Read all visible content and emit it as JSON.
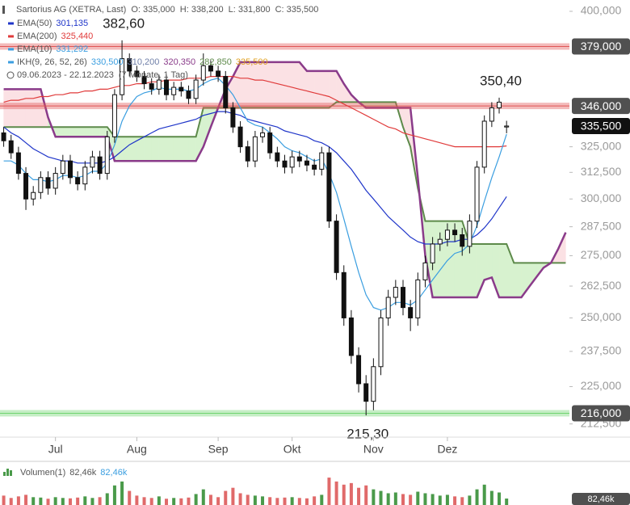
{
  "chart_data": {
    "type": "candlestick",
    "title": "Sartorius AG (XETRA, Last)",
    "ohlc_text": [
      "O: 335,000",
      "H: 338,200",
      "L: 331,800",
      "C: 335,500"
    ],
    "range_text": "09.06.2023 - 22.12.2023",
    "range_note": "(7 Monate, 1 Tag)",
    "log_scale": true,
    "ylim": [
      208.5,
      407
    ],
    "yticks": [
      {
        "value": 400,
        "label": "400,000"
      },
      {
        "value": 325,
        "label": "325,000"
      },
      {
        "value": 312.5,
        "label": "312,500"
      },
      {
        "value": 300,
        "label": "300,000"
      },
      {
        "value": 287.5,
        "label": "287,500"
      },
      {
        "value": 275,
        "label": "275,000"
      },
      {
        "value": 262.5,
        "label": "262,500"
      },
      {
        "value": 250,
        "label": "250,000"
      },
      {
        "value": 237.5,
        "label": "237,500"
      },
      {
        "value": 225,
        "label": "225,000"
      },
      {
        "value": 212.5,
        "label": "212,500"
      }
    ],
    "categories": [
      null,
      null,
      null,
      null,
      null,
      null,
      null,
      "Jul",
      null,
      null,
      null,
      null,
      null,
      null,
      null,
      null,
      null,
      null,
      "Aug",
      null,
      null,
      null,
      null,
      null,
      null,
      null,
      null,
      null,
      null,
      "Sep",
      null,
      null,
      null,
      null,
      null,
      null,
      null,
      null,
      null,
      "Okt",
      null,
      null,
      null,
      null,
      null,
      null,
      null,
      null,
      null,
      null,
      "Nov",
      null,
      null,
      null,
      null,
      null,
      null,
      null,
      null,
      null,
      "Dez",
      null,
      null,
      null,
      null,
      null,
      null,
      null,
      null,
      null,
      null,
      null,
      null,
      null,
      null,
      null,
      null
    ],
    "up_color": "#ffffff",
    "down_color": "#111111",
    "open": [
      332,
      328,
      322,
      312,
      300,
      303,
      310,
      305,
      312,
      318,
      310,
      307,
      315,
      320,
      312,
      330,
      352,
      372,
      365,
      362,
      358,
      355,
      360,
      352,
      356,
      354,
      350,
      360,
      368,
      365,
      362,
      345,
      335,
      325,
      318,
      330,
      332,
      322,
      318,
      315,
      320,
      318,
      316,
      314,
      322,
      290,
      268,
      250,
      236,
      226,
      220,
      232,
      250,
      258,
      262,
      254,
      250,
      265,
      272,
      280,
      282,
      286,
      284,
      279,
      290,
      315,
      338,
      345,
      335,
      null,
      null,
      null,
      null,
      null,
      null,
      null,
      null
    ],
    "high": [
      335,
      331,
      325,
      315,
      306,
      313,
      313,
      315,
      321,
      321,
      313,
      318,
      323,
      323,
      333,
      355,
      382.6,
      375,
      368,
      365,
      361,
      363,
      363,
      359,
      359,
      357,
      363,
      375,
      371,
      368,
      365,
      348,
      338,
      328,
      333,
      335,
      335,
      325,
      321,
      323,
      323,
      321,
      319,
      325,
      325,
      293,
      271,
      253,
      239,
      229,
      235,
      253,
      261,
      265,
      265,
      257,
      268,
      275,
      283,
      285,
      289,
      289,
      287,
      293,
      318,
      341,
      348,
      350.4,
      338.2,
      null,
      null,
      null,
      null,
      null,
      null,
      null,
      null
    ],
    "low": [
      325,
      319,
      309,
      295,
      297,
      300,
      302,
      302,
      309,
      307,
      304,
      304,
      312,
      309,
      309,
      327,
      349,
      362,
      359,
      355,
      352,
      352,
      349,
      349,
      351,
      347,
      347,
      357,
      362,
      359,
      342,
      332,
      322,
      315,
      315,
      327,
      319,
      315,
      312,
      312,
      315,
      313,
      311,
      311,
      287,
      265,
      247,
      233,
      223,
      215.3,
      217,
      229,
      247,
      255,
      251,
      245,
      247,
      262,
      269,
      277,
      279,
      281,
      275,
      276,
      287,
      312,
      335,
      342,
      331.8,
      null,
      null,
      null,
      null,
      null,
      null,
      null,
      null
    ],
    "close": [
      328,
      322,
      312,
      300,
      303,
      310,
      305,
      312,
      318,
      310,
      307,
      315,
      320,
      312,
      330,
      352,
      372,
      365,
      362,
      358,
      355,
      360,
      352,
      356,
      354,
      350,
      360,
      368,
      365,
      362,
      345,
      335,
      325,
      318,
      330,
      332,
      322,
      318,
      315,
      320,
      318,
      316,
      314,
      322,
      290,
      268,
      250,
      236,
      226,
      220,
      232,
      250,
      258,
      262,
      254,
      250,
      265,
      272,
      280,
      282,
      286,
      284,
      279,
      290,
      315,
      338,
      345,
      348,
      335.5,
      null,
      null,
      null,
      null,
      null,
      null,
      null,
      null
    ],
    "series": [
      {
        "name": "EMA(50)",
        "color": "#1f35c9",
        "last_label": "301,135",
        "values": [
          335,
          332,
          330,
          327,
          324,
          322,
          320,
          319,
          318,
          318,
          317,
          317,
          317,
          317,
          318,
          320,
          323,
          326,
          328,
          330,
          332,
          334,
          335,
          336,
          337,
          338,
          339,
          341,
          342,
          343,
          343,
          342,
          341,
          339,
          338,
          337,
          336,
          335,
          333,
          332,
          331,
          330,
          328,
          327,
          325,
          322,
          318,
          314,
          309,
          304,
          300,
          296,
          292,
          289,
          286,
          283,
          281,
          280,
          280,
          280,
          281,
          281,
          282,
          282,
          284,
          287,
          291,
          296,
          301.1,
          null,
          null,
          null,
          null,
          null,
          null,
          null,
          null
        ]
      },
      {
        "name": "EMA(200)",
        "color": "#e03a3a",
        "last_label": "325,440",
        "values": [
          348,
          349,
          349,
          350,
          350,
          351,
          351,
          352,
          352,
          353,
          353,
          354,
          354,
          355,
          355,
          356,
          357,
          357,
          358,
          358,
          359,
          359,
          360,
          360,
          360,
          361,
          361,
          361,
          362,
          362,
          362,
          362,
          361,
          361,
          360,
          360,
          359,
          358,
          357,
          356,
          355,
          354,
          353,
          352,
          351,
          349,
          347,
          345,
          343,
          341,
          339,
          337,
          335,
          334,
          332,
          331,
          330,
          329,
          328,
          327,
          326,
          325,
          325,
          325,
          325,
          325,
          325,
          325,
          325.4,
          null,
          null,
          null,
          null,
          null,
          null,
          null,
          null
        ]
      },
      {
        "name": "EMA(10)",
        "color": "#3a9ee0",
        "last_label": "331,292",
        "values": [
          318,
          318,
          316,
          312,
          309,
          309,
          308,
          309,
          311,
          311,
          310,
          311,
          313,
          313,
          317,
          326,
          338,
          346,
          351,
          353,
          354,
          356,
          355,
          355,
          355,
          354,
          355,
          358,
          360,
          361,
          357,
          352,
          345,
          338,
          336,
          335,
          332,
          329,
          325,
          323,
          322,
          320,
          318,
          319,
          312,
          303,
          291,
          279,
          268,
          259,
          254,
          253,
          254,
          256,
          256,
          255,
          257,
          261,
          265,
          269,
          273,
          276,
          277,
          280,
          288,
          299,
          310,
          320,
          331.3,
          null,
          null,
          null,
          null,
          null,
          null,
          null,
          null
        ]
      }
    ],
    "ichimoku": {
      "name": "IKH(9, 26, 52, 26)",
      "labels": [
        {
          "text": "330,500",
          "color": "#3a9ee0"
        },
        {
          "text": "310,200",
          "color": "#6f7fa8"
        },
        {
          "text": "320,350",
          "color": "#8a3b8a"
        },
        {
          "text": "282,850",
          "color": "#5d8a4a"
        },
        {
          "text": "335,500",
          "color": "#e0a020"
        }
      ],
      "span_a_color": "#5d8a4a",
      "span_b_color": "#8a3b8a",
      "bull_fill": "#d7f2cf",
      "bear_fill": "#fbe1e4",
      "span_a": [
        335,
        335,
        335,
        335,
        335,
        335,
        335,
        335,
        335,
        335,
        335,
        335,
        335,
        335,
        335,
        330,
        330,
        330,
        330,
        330,
        330,
        330,
        330,
        330,
        330,
        330,
        330,
        345,
        345,
        345,
        345,
        345,
        345,
        345,
        345,
        345,
        345,
        345,
        345,
        345,
        345,
        345,
        345,
        345,
        345,
        348,
        348,
        348,
        348,
        348,
        348,
        348,
        348,
        348,
        335,
        325,
        305,
        290,
        290,
        290,
        290,
        290,
        290,
        280,
        280,
        280,
        280,
        280,
        280,
        272,
        272,
        272,
        272,
        272,
        272,
        272,
        272
      ],
      "span_b": [
        355,
        355,
        355,
        355,
        355,
        355,
        340,
        330,
        330,
        330,
        330,
        330,
        330,
        330,
        330,
        318,
        318,
        318,
        318,
        318,
        318,
        318,
        318,
        318,
        318,
        318,
        318,
        325,
        335,
        345,
        355,
        362,
        370,
        370,
        370,
        370,
        370,
        370,
        370,
        370,
        370,
        365,
        365,
        365,
        365,
        365,
        358,
        352,
        348,
        345,
        345,
        345,
        345,
        345,
        345,
        345,
        310,
        275,
        258,
        258,
        258,
        258,
        258,
        258,
        258,
        265,
        266,
        258,
        258,
        258,
        258,
        262,
        266,
        270,
        272,
        278,
        285
      ]
    },
    "levels": [
      {
        "value": 379,
        "label": "379,000",
        "color": "#e05555"
      },
      {
        "value": 346,
        "label": "346,000",
        "color": "#e05555"
      },
      {
        "value": 216,
        "label": "216,000",
        "color": "#6fd46f"
      }
    ],
    "last_price": {
      "value": 335.5,
      "label": "335,500"
    },
    "annotations": [
      {
        "text": "382,60",
        "value": 382.6
      },
      {
        "text": "350,40",
        "value": 350.4
      },
      {
        "text": "215,30",
        "value": 215.3
      }
    ],
    "volume": {
      "name": "Volumen(1)",
      "labels": [
        "82,46k",
        "82,46k"
      ],
      "last_label": "82,46k",
      "ylim": [
        0,
        485
      ],
      "up_color": "#4a9a4a",
      "down_color": "#e06a6a",
      "values": [
        120,
        90,
        110,
        130,
        100,
        95,
        80,
        100,
        90,
        85,
        95,
        110,
        90,
        100,
        150,
        250,
        300,
        180,
        120,
        100,
        90,
        110,
        80,
        90,
        85,
        95,
        140,
        200,
        130,
        100,
        180,
        220,
        150,
        130,
        120,
        110,
        100,
        90,
        95,
        100,
        90,
        85,
        110,
        130,
        350,
        300,
        260,
        280,
        220,
        250,
        200,
        180,
        150,
        160,
        140,
        130,
        170,
        150,
        140,
        120,
        130,
        110,
        100,
        120,
        200,
        260,
        180,
        160,
        82.46,
        null,
        null,
        null,
        null,
        null,
        null,
        null,
        null
      ]
    }
  }
}
